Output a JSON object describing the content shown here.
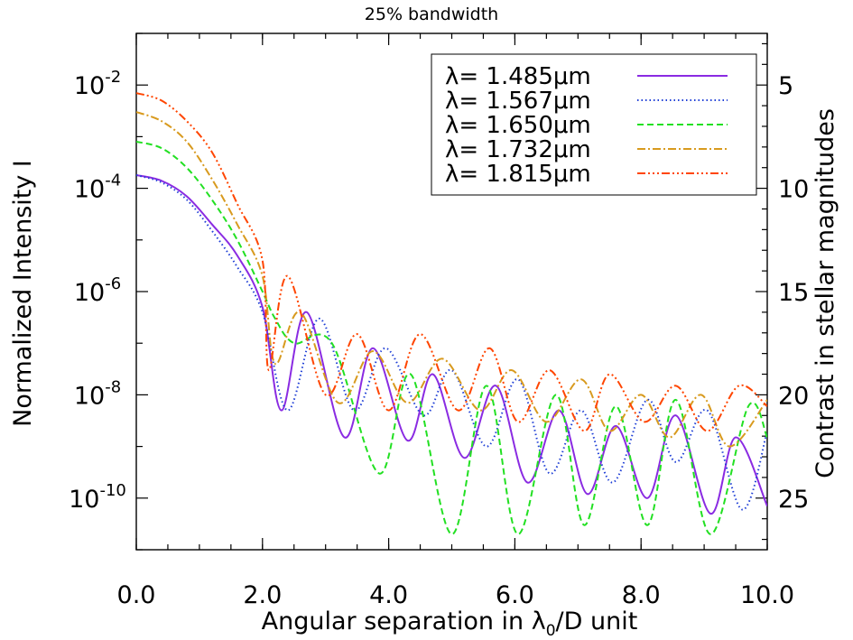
{
  "chart_data": {
    "type": "line",
    "title": "25% bandwidth",
    "xlabel": "Angular separation in λ₀/D unit",
    "xlabel_main": "Angular separation in λ",
    "xlabel_sub": "0",
    "xlabel_tail": "/D unit",
    "ylabel": "Normalized Intensity I",
    "y2label": "Contrast in stellar magnitudes",
    "xlim": [
      0,
      10
    ],
    "ylim": [
      1e-11,
      0.1
    ],
    "yscale": "log",
    "x_ticks": [
      "0.0",
      "2.0",
      "4.0",
      "6.0",
      "8.0",
      "10.0"
    ],
    "y_ticks": [
      {
        "base": "10",
        "exp": "-2",
        "value": 0.01
      },
      {
        "base": "10",
        "exp": "-4",
        "value": 0.0001
      },
      {
        "base": "10",
        "exp": "-6",
        "value": 1e-06
      },
      {
        "base": "10",
        "exp": "-8",
        "value": 1e-08
      },
      {
        "base": "10",
        "exp": "-10",
        "value": 1e-10
      }
    ],
    "y2_ticks": [
      {
        "label": "5",
        "value": 5
      },
      {
        "label": "10",
        "value": 10
      },
      {
        "label": "15",
        "value": 15
      },
      {
        "label": "20",
        "value": 20
      },
      {
        "label": "25",
        "value": 25
      }
    ],
    "legend_position": "top-right",
    "series": [
      {
        "name": "λ=  1.485μm",
        "color": "#8a2be2",
        "dash": "solid",
        "x": [
          0.0,
          0.4,
          0.8,
          1.2,
          1.6,
          2.0,
          2.3,
          2.7,
          3.3,
          3.75,
          4.3,
          4.7,
          5.2,
          5.7,
          6.2,
          6.7,
          7.15,
          7.6,
          8.1,
          8.55,
          9.1,
          9.5,
          10.0
        ],
        "y": [
          0.00018,
          0.00014,
          7e-05,
          2e-05,
          5e-06,
          5e-07,
          5e-09,
          4e-07,
          1.5e-09,
          8e-08,
          1.3e-09,
          2.5e-08,
          6e-10,
          1.5e-08,
          2e-10,
          5e-09,
          1.2e-10,
          2.5e-09,
          1e-10,
          4e-09,
          5e-11,
          1.5e-09,
          7e-11
        ]
      },
      {
        "name": "λ=  1.567μm",
        "color": "#1f3fd6",
        "dash": "dotted",
        "x": [
          0.0,
          0.4,
          0.8,
          1.2,
          1.6,
          2.0,
          2.4,
          2.9,
          3.45,
          3.95,
          4.55,
          5.0,
          5.55,
          6.05,
          6.55,
          7.05,
          7.55,
          8.1,
          8.55,
          9.05,
          9.6,
          10.0
        ],
        "y": [
          0.00018,
          0.00013,
          6e-05,
          1.5e-05,
          3e-06,
          4e-07,
          5e-09,
          3e-07,
          5e-09,
          8e-08,
          4e-09,
          3e-08,
          1e-09,
          2e-08,
          3e-10,
          5e-09,
          2e-10,
          8e-09,
          5e-10,
          5e-09,
          6e-11,
          2e-09
        ]
      },
      {
        "name": "λ=  1.650μm",
        "color": "#22e022",
        "dash": "dashed",
        "x": [
          0.0,
          0.4,
          0.8,
          1.2,
          1.6,
          2.0,
          2.2,
          2.5,
          3.1,
          3.85,
          4.35,
          5.0,
          5.55,
          6.05,
          6.65,
          7.1,
          7.6,
          8.1,
          8.55,
          9.1,
          9.7,
          10.0
        ],
        "y": [
          0.0008,
          0.0006,
          0.00025,
          6e-05,
          1e-05,
          1e-06,
          3e-07,
          1e-07,
          1e-07,
          3e-10,
          2.5e-08,
          2e-11,
          1.5e-08,
          2e-11,
          1e-08,
          3e-11,
          6e-09,
          3e-11,
          8e-09,
          2e-11,
          6e-09,
          1.5e-09
        ]
      },
      {
        "name": "λ=  1.732μm",
        "color": "#d89a1e",
        "dash": "dashdot",
        "x": [
          0.0,
          0.4,
          0.8,
          1.2,
          1.6,
          2.0,
          2.2,
          2.6,
          3.2,
          3.75,
          4.3,
          4.85,
          5.45,
          5.95,
          6.5,
          7.05,
          7.5,
          8.0,
          8.45,
          8.95,
          9.4,
          10.0
        ],
        "y": [
          0.003,
          0.002,
          0.0008,
          0.00015,
          2e-05,
          2e-06,
          4e-08,
          4e-07,
          7e-09,
          7e-08,
          7e-09,
          5e-08,
          5e-09,
          3e-08,
          3e-09,
          2e-08,
          2e-09,
          1e-08,
          1.5e-09,
          1e-08,
          1e-09,
          8e-09
        ]
      },
      {
        "name": "λ=  1.815μm",
        "color": "#ff4500",
        "dash": "dashdotdotdot",
        "x": [
          0.0,
          0.4,
          0.8,
          1.2,
          1.6,
          2.0,
          2.1,
          2.4,
          3.0,
          3.5,
          4.0,
          4.5,
          5.1,
          5.6,
          6.05,
          6.55,
          7.1,
          7.5,
          8.05,
          8.55,
          9.05,
          9.55,
          10.0
        ],
        "y": [
          0.007,
          0.005,
          0.002,
          0.0005,
          5e-05,
          4e-06,
          3e-08,
          2e-06,
          1e-08,
          1.5e-07,
          5e-09,
          1.5e-07,
          5e-09,
          8e-08,
          3e-09,
          3e-08,
          2e-09,
          2.5e-08,
          3e-09,
          1.5e-08,
          2e-09,
          1.5e-08,
          6e-09
        ]
      }
    ]
  }
}
